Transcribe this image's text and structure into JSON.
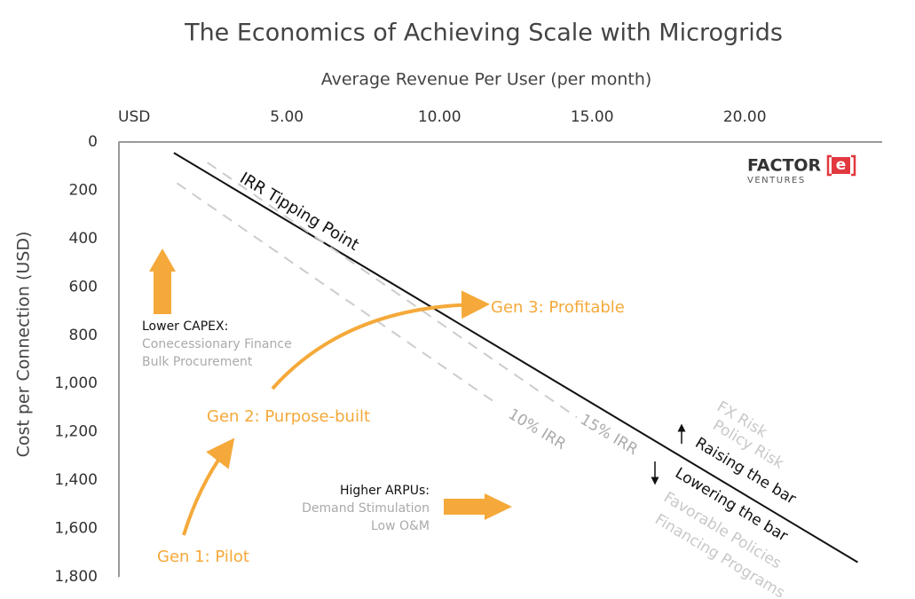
{
  "chart_data": {
    "type": "line",
    "title": "The Economics of Achieving Scale with Microgrids",
    "x_label": "Average Revenue Per User (per month)",
    "y_label": "Cost per Connection (USD)",
    "xlim": [
      -0.5,
      24.5
    ],
    "xticks": [
      {
        "value": 0,
        "label": "USD"
      },
      {
        "value": 5,
        "label": "5.00"
      },
      {
        "value": 10,
        "label": "10.00"
      },
      {
        "value": 15,
        "label": "15.00"
      },
      {
        "value": 20,
        "label": "20.00"
      }
    ],
    "ylim": [
      0,
      1800
    ],
    "y_inverted": true,
    "yticks": [
      0,
      200,
      400,
      600,
      800,
      {
        "value": 1000,
        "label": "1,000"
      },
      {
        "value": 1200,
        "label": "1,200"
      },
      {
        "value": 1400,
        "label": "1,400"
      },
      {
        "value": 1600,
        "label": "1,600"
      },
      {
        "value": 1800,
        "label": "1,800"
      }
    ],
    "series": [
      {
        "name": "IRR Tipping Point",
        "color": "#111111",
        "style": "solid",
        "x": [
          1.3,
          23.7
        ],
        "values": [
          45,
          1740
        ]
      },
      {
        "name": "15% IRR",
        "color": "#cccccc",
        "style": "dashed",
        "x": [
          2.4,
          14.5
        ],
        "values": [
          85,
          1140
        ]
      },
      {
        "name": "10% IRR",
        "color": "#cccccc",
        "style": "dashed",
        "x": [
          1.4,
          11.9
        ],
        "values": [
          170,
          1085
        ]
      }
    ],
    "annotations": {
      "gen3": "Gen 3: Profitable",
      "gen2": "Gen 2: Purpose-built",
      "gen1": "Gen 1: Pilot",
      "capex_title": "Lower CAPEX:",
      "capex_1": "Conecessionary Finance",
      "capex_2": "Bulk Procurement",
      "arpu_title": "Higher ARPUs:",
      "arpu_1": "Demand Stimulation",
      "arpu_2": "Low O&M",
      "fx": "FX Risk",
      "policy": "Policy Risk",
      "raising": "Raising the bar",
      "lowering": "Lowering the bar",
      "favorable": "Favorable Policies",
      "financing": "Financing Programs"
    },
    "logo": {
      "name": "FACTOR",
      "mark": "e",
      "sub": "VENTURES"
    }
  }
}
